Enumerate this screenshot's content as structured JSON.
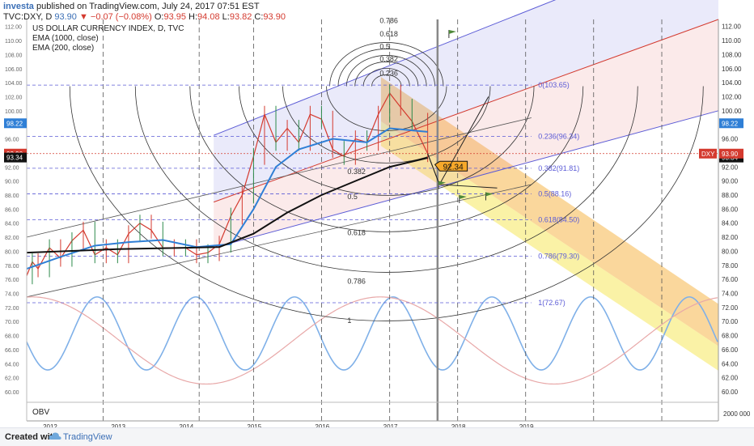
{
  "header": {
    "publisher": "investa",
    "published_text": "published on TradingView.com, July 24, 2017 07:51 EST",
    "symbol": "TVC:DXY, D",
    "last": "93.90",
    "change": "−0.07 (−0.08%)",
    "ohlc": {
      "o_label": "O:",
      "o": "93.95",
      "h_label": "H:",
      "h": "94.08",
      "l_label": "L:",
      "l": "93.82",
      "c_label": "C:",
      "c": "93.90"
    }
  },
  "legend": {
    "title": "US DOLLAR CURRENCY INDEX, D, TVC",
    "ema1": "EMA (1000, close)",
    "ema2": "EMA (200, close)",
    "obv": "OBV"
  },
  "footer": {
    "created": "Created with",
    "brand": "TradingView"
  },
  "colors": {
    "price": "#d43a2f",
    "ema_fast": "#2f7fd6",
    "ema_slow": "#111111",
    "fib": "#5b5bd6",
    "channel_blue": "#8a8ae6",
    "channel_red": "#e88a8a",
    "orange_band": "#f6b64a",
    "yellow_band": "#f7ea6a",
    "cycle": "#7fb0e8",
    "cycle_slow": "#e8a8a8",
    "arc": "#333333",
    "red_marker": "#d43a2f",
    "blue_marker": "#2f7fd6",
    "green_flag": "#4f8a3a"
  },
  "chart_data": {
    "type": "line",
    "title": "US DOLLAR CURRENCY INDEX, D, TVC",
    "x_axis": {
      "type": "date",
      "ticks": [
        "2012",
        "2013",
        "2014",
        "2015",
        "2016",
        "2017",
        "2018",
        "2019"
      ],
      "range": [
        "2011-09-01",
        "2021-11-01"
      ]
    },
    "y_axis": {
      "range": [
        58.5,
        113
      ],
      "ticks": [
        60,
        62,
        64,
        66,
        68,
        70,
        72,
        74,
        76,
        78,
        80,
        82,
        84,
        86,
        88,
        90,
        92,
        94,
        96,
        98,
        100,
        102,
        104,
        106,
        108,
        110,
        112
      ],
      "tick_labels": [
        "60.00",
        "62.00",
        "64.00",
        "66.00",
        "68.00",
        "70.00",
        "72.00",
        "74.00",
        "76.00",
        "78.00",
        "80.00",
        "82.00",
        "84.00",
        "86.00",
        "88.00",
        "90.00",
        "92.00",
        "94.00",
        "96.00",
        "98.00",
        "100.00",
        "102.00",
        "104.00",
        "106.00",
        "108.00",
        "110.00",
        "112.00"
      ],
      "obv_label": "2000 000"
    },
    "series": [
      {
        "name": "US DOLLAR CURRENCY INDEX",
        "points": [
          [
            "2011-09-01",
            76.5
          ],
          [
            "2011-10-01",
            78.5
          ],
          [
            "2011-11-01",
            77.5
          ],
          [
            "2012-01-01",
            80.5
          ],
          [
            "2012-03-01",
            79.0
          ],
          [
            "2012-05-01",
            81.5
          ],
          [
            "2012-07-01",
            83.0
          ],
          [
            "2012-09-01",
            79.5
          ],
          [
            "2012-11-01",
            80.5
          ],
          [
            "2013-01-01",
            79.5
          ],
          [
            "2013-03-01",
            82.5
          ],
          [
            "2013-05-01",
            84.0
          ],
          [
            "2013-07-01",
            83.0
          ],
          [
            "2013-09-01",
            80.5
          ],
          [
            "2013-11-01",
            80.5
          ],
          [
            "2014-01-01",
            80.5
          ],
          [
            "2014-03-01",
            79.5
          ],
          [
            "2014-05-01",
            79.8
          ],
          [
            "2014-07-01",
            81.0
          ],
          [
            "2014-09-01",
            85.0
          ],
          [
            "2014-11-01",
            88.0
          ],
          [
            "2015-01-01",
            93.5
          ],
          [
            "2015-03-01",
            99.5
          ],
          [
            "2015-05-01",
            95.5
          ],
          [
            "2015-07-01",
            97.5
          ],
          [
            "2015-09-01",
            95.5
          ],
          [
            "2015-11-01",
            99.5
          ],
          [
            "2016-01-01",
            98.8
          ],
          [
            "2016-03-01",
            94.5
          ],
          [
            "2016-05-01",
            93.5
          ],
          [
            "2016-07-01",
            96.0
          ],
          [
            "2016-09-01",
            95.5
          ],
          [
            "2016-11-01",
            99.5
          ],
          [
            "2017-01-01",
            102.5
          ],
          [
            "2017-03-01",
            100.5
          ],
          [
            "2017-05-01",
            98.5
          ],
          [
            "2017-07-24",
            93.9
          ]
        ]
      },
      {
        "name": "EMA (200, close)",
        "points": [
          [
            "2011-09-01",
            77.5
          ],
          [
            "2012-03-01",
            79.2
          ],
          [
            "2012-09-01",
            80.8
          ],
          [
            "2013-03-01",
            81.3
          ],
          [
            "2013-09-01",
            81.6
          ],
          [
            "2014-03-01",
            80.6
          ],
          [
            "2014-09-01",
            81.0
          ],
          [
            "2015-01-01",
            86.0
          ],
          [
            "2015-05-01",
            92.0
          ],
          [
            "2015-09-01",
            94.5
          ],
          [
            "2016-03-01",
            96.0
          ],
          [
            "2016-09-01",
            95.5
          ],
          [
            "2017-01-01",
            97.5
          ],
          [
            "2017-07-24",
            97.0
          ]
        ]
      },
      {
        "name": "EMA (1000, close)",
        "points": [
          [
            "2011-09-01",
            79.8
          ],
          [
            "2013-01-01",
            80.3
          ],
          [
            "2014-01-01",
            80.5
          ],
          [
            "2014-07-01",
            80.6
          ],
          [
            "2015-01-01",
            82.5
          ],
          [
            "2015-07-01",
            85.5
          ],
          [
            "2016-01-01",
            88.0
          ],
          [
            "2016-07-01",
            90.0
          ],
          [
            "2017-01-01",
            92.0
          ],
          [
            "2017-07-24",
            93.3
          ]
        ]
      }
    ],
    "fib_levels": [
      {
        "label": "0",
        "value": 103.65
      },
      {
        "label": "0.236",
        "value": 96.34
      },
      {
        "label": "0.382",
        "value": 91.81
      },
      {
        "label": "0.5",
        "value": 88.16
      },
      {
        "label": "0.618",
        "value": 84.5
      },
      {
        "label": "0.786",
        "value": 79.3
      },
      {
        "label": "1",
        "value": 72.67
      }
    ],
    "fib_arc_labels": [
      "0.786",
      "0.618",
      "0.5",
      "0.382",
      "0.236",
      "0.382",
      "0.5",
      "0.618",
      "0.786",
      "1"
    ],
    "price_markers": [
      {
        "label": "98.22",
        "value": 98.22,
        "side": "both",
        "color": "blue"
      },
      {
        "label": "93.90",
        "value": 93.9,
        "side": "left",
        "color": "red"
      },
      {
        "label": "93.34",
        "value": 93.34,
        "side": "both",
        "color": "black"
      },
      {
        "label": "DXY",
        "value": 93.9,
        "side": "right",
        "color": "red"
      },
      {
        "label": "93.90",
        "value": 93.9,
        "side": "right",
        "color": "red"
      }
    ],
    "callout": {
      "label": "92.34",
      "value": 92.34
    },
    "grid": false,
    "legend": "top-left"
  }
}
